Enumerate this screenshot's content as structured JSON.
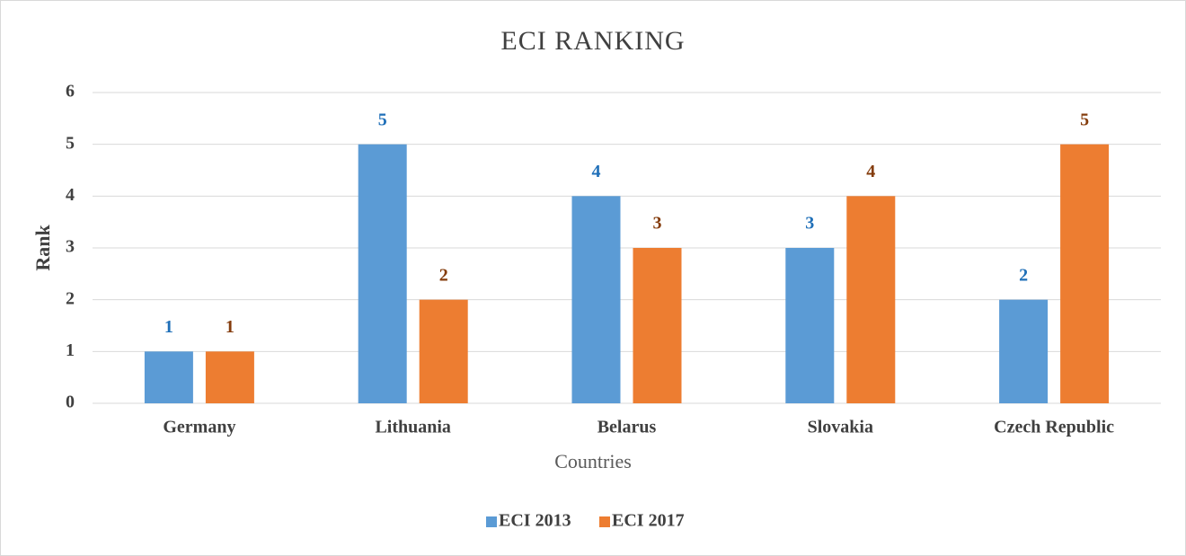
{
  "chart_data": {
    "type": "bar",
    "title": "ECI RANKING",
    "x_label": "Countries",
    "y_label": "Rank",
    "categories": [
      "Germany",
      "Lithuania",
      "Belarus",
      "Slovakia",
      "Czech Republic"
    ],
    "series": [
      {
        "name": "ECI 2013",
        "color": "#5b9bd5",
        "label_color": "#1f6fb8",
        "values": [
          1,
          5,
          4,
          3,
          2
        ]
      },
      {
        "name": "ECI 2017",
        "color": "#ed7d31",
        "label_color": "#843c0c",
        "values": [
          1,
          2,
          3,
          4,
          5
        ]
      }
    ],
    "ylim": [
      0,
      6
    ],
    "yticks": [
      0,
      1,
      2,
      3,
      4,
      5,
      6
    ],
    "grid": true,
    "legend": "bottom"
  }
}
